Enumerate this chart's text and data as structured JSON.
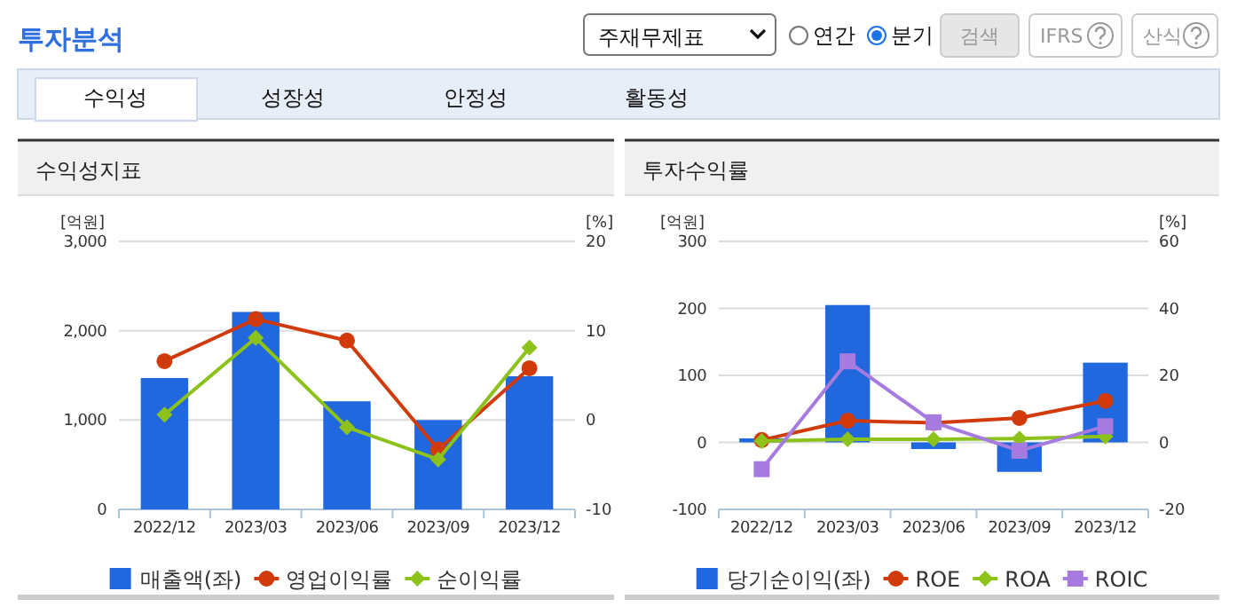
{
  "chart_data": [
    {
      "type": "other",
      "title": "투자분석",
      "annotations": [
        "주재무제표",
        "연간",
        "분기",
        "검색",
        "IFRS",
        "산식",
        "수익성",
        "성장성",
        "안정성",
        "활동성"
      ]
    },
    {
      "type": "bar",
      "title": "수익성지표",
      "ylabel": "[억원]",
      "y2label": "[%]",
      "categories": [
        "2022/12",
        "2023/03",
        "2023/06",
        "2023/09",
        "2023/12"
      ],
      "ylim": [
        0,
        3000
      ],
      "yticks": [
        0,
        {
          "value": 1000,
          "label": "1,000"
        },
        {
          "value": 2000,
          "label": "2,000"
        },
        {
          "value": 3000,
          "label": "3,000"
        }
      ],
      "y2lim": [
        -10,
        20
      ],
      "y2ticks": [
        -10,
        0,
        10,
        20
      ],
      "grid": "y",
      "legend": "bottom",
      "series": [
        {
          "name": "매출액(좌)",
          "type": "bar",
          "color": "#2168de",
          "values": [
            1470,
            2210,
            1210,
            1000,
            1490
          ]
        },
        {
          "name": "영업이익률",
          "type": "line",
          "axis": "y2",
          "color": "#d13a0a",
          "marker": "circle",
          "values": [
            6.6,
            11.3,
            8.9,
            -3.3,
            5.8
          ]
        },
        {
          "name": "순이익률",
          "type": "line",
          "axis": "y2",
          "color": "#8cc21a",
          "marker": "diamond",
          "values": [
            0.6,
            9.2,
            -0.8,
            -4.4,
            8.1
          ]
        }
      ]
    },
    {
      "type": "bar",
      "title": "투자수익률",
      "ylabel": "[억원]",
      "y2label": "[%]",
      "categories": [
        "2022/12",
        "2023/03",
        "2023/06",
        "2023/09",
        "2023/12"
      ],
      "ylim": [
        -100,
        300
      ],
      "yticks": [
        -100,
        0,
        100,
        200,
        300
      ],
      "y2lim": [
        -20,
        60
      ],
      "y2ticks": [
        -20,
        0,
        20,
        40,
        60
      ],
      "grid": "y",
      "legend": "bottom",
      "series": [
        {
          "name": "당기순이익(좌)",
          "type": "bar",
          "color": "#2168de",
          "values": [
            6,
            205,
            -10,
            -44,
            119
          ]
        },
        {
          "name": "ROE",
          "type": "line",
          "axis": "y2",
          "color": "#d13a0a",
          "marker": "circle",
          "values": [
            0.7,
            6.5,
            5.8,
            7.3,
            12.4
          ]
        },
        {
          "name": "ROA",
          "type": "line",
          "axis": "y2",
          "color": "#8cc21a",
          "marker": "diamond",
          "values": [
            0.4,
            0.9,
            0.9,
            1.1,
            1.8
          ]
        },
        {
          "name": "ROIC",
          "type": "line",
          "axis": "y2",
          "color": "#a57be0",
          "marker": "square",
          "values": [
            -8.0,
            24.2,
            6.0,
            -2.5,
            4.8
          ]
        }
      ]
    }
  ]
}
